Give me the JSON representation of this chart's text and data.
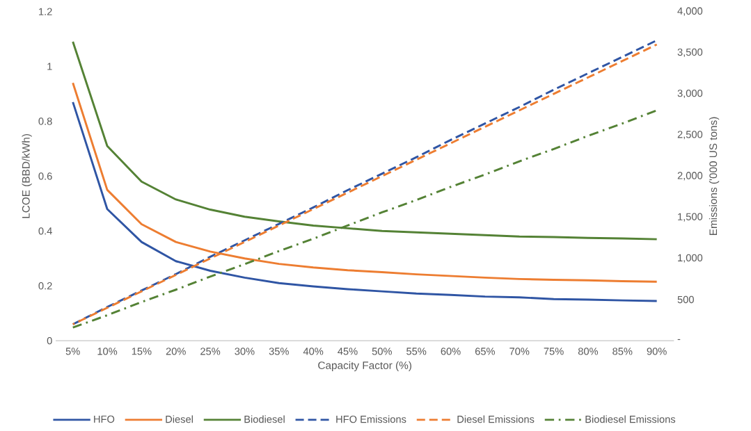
{
  "chart_data": {
    "type": "line",
    "xlabel": "Capacity Factor (%)",
    "ylabel": "LCOE (BBD/kWh)",
    "y2label": "Emissions ('000 US tons)",
    "categories": [
      "5%",
      "10%",
      "15%",
      "20%",
      "25%",
      "30%",
      "35%",
      "40%",
      "45%",
      "50%",
      "55%",
      "60%",
      "65%",
      "70%",
      "75%",
      "80%",
      "85%",
      "90%"
    ],
    "ylim": [
      0,
      1.2
    ],
    "yticks": [
      0,
      0.2,
      0.4,
      0.6,
      0.8,
      1,
      1.2
    ],
    "y2lim": [
      0,
      4000
    ],
    "y2ticks": [
      {
        "value": 0,
        "label": "-"
      },
      500,
      {
        "value": 1000,
        "label": "1,000"
      },
      {
        "value": 1500,
        "label": "1,500"
      },
      {
        "value": 2000,
        "label": "2,000"
      },
      {
        "value": 2500,
        "label": "2,500"
      },
      {
        "value": 3000,
        "label": "3,000"
      },
      {
        "value": 3500,
        "label": "3,500"
      },
      {
        "value": 4000,
        "label": "4,000"
      }
    ],
    "legend": "bottom",
    "marker": "none",
    "series": [
      {
        "name": "HFO",
        "color": "#2f55a4",
        "line_style": "solid",
        "values": [
          0.87,
          0.48,
          0.36,
          0.29,
          0.255,
          0.23,
          0.21,
          0.198,
          0.188,
          0.18,
          0.172,
          0.167,
          0.161,
          0.158,
          0.152,
          0.15,
          0.147,
          0.145
        ]
      },
      {
        "name": "Diesel",
        "color": "#ed7d31",
        "line_style": "solid",
        "values": [
          0.94,
          0.55,
          0.425,
          0.36,
          0.325,
          0.3,
          0.28,
          0.267,
          0.257,
          0.25,
          0.242,
          0.236,
          0.23,
          0.225,
          0.222,
          0.22,
          0.217,
          0.215
        ]
      },
      {
        "name": "Biodiesel",
        "color": "#548235",
        "line_style": "solid",
        "values": [
          1.09,
          0.71,
          0.58,
          0.515,
          0.478,
          0.452,
          0.435,
          0.42,
          0.41,
          0.4,
          0.395,
          0.39,
          0.385,
          0.38,
          0.378,
          0.375,
          0.373,
          0.37
        ]
      },
      {
        "name": "HFO Emissions",
        "color": "#2f55a4",
        "line_style": "dashed",
        "axis": "y2",
        "values": [
          200,
          410,
          610,
          810,
          1020,
          1220,
          1420,
          1620,
          1830,
          2030,
          2230,
          2440,
          2640,
          2840,
          3050,
          3250,
          3450,
          3650
        ]
      },
      {
        "name": "Diesel Emissions",
        "color": "#ed7d31",
        "line_style": "dashed",
        "axis": "y2",
        "values": [
          200,
          400,
          600,
          800,
          1000,
          1200,
          1400,
          1600,
          1800,
          2000,
          2200,
          2400,
          2600,
          2800,
          3000,
          3200,
          3400,
          3600
        ]
      },
      {
        "name": "Biodiesel Emissions",
        "color": "#548235",
        "line_style": "dashdot",
        "axis": "y2",
        "values": [
          160,
          310,
          470,
          620,
          780,
          930,
          1090,
          1240,
          1400,
          1560,
          1710,
          1870,
          2020,
          2180,
          2330,
          2490,
          2640,
          2800
        ]
      }
    ]
  }
}
